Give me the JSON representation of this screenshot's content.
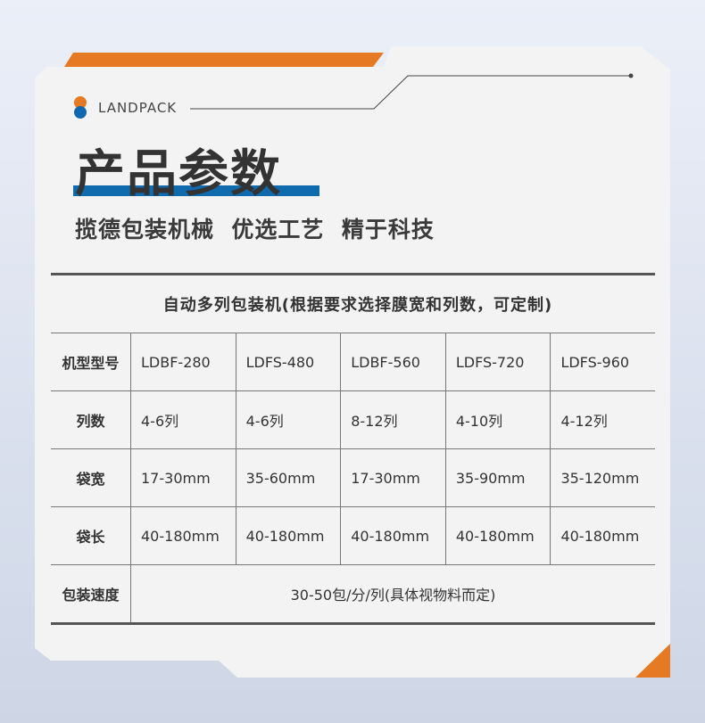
{
  "brand": "LANDPACK",
  "title": "产品参数",
  "subtitle": "揽德包装机械  优选工艺  精于科技",
  "colors": {
    "orange": "#e67a24",
    "blue": "#0f6aae",
    "card": "#f3f3f3"
  },
  "table": {
    "caption": "自动多列包装机(根据要求选择膜宽和列数，可定制)",
    "rows": [
      {
        "label": "机型型号",
        "values": [
          "LDBF-280",
          "LDFS-480",
          "LDBF-560",
          "LDFS-720",
          "LDFS-960"
        ]
      },
      {
        "label": "列数",
        "values": [
          "4-6列",
          "4-6列",
          "8-12列",
          "4-10列",
          "4-12列"
        ]
      },
      {
        "label": "袋宽",
        "values": [
          "17-30mm",
          "35-60mm",
          "17-30mm",
          "35-90mm",
          "35-120mm"
        ]
      },
      {
        "label": "袋长",
        "values": [
          "40-180mm",
          "40-180mm",
          "40-180mm",
          "40-180mm",
          "40-180mm"
        ]
      }
    ],
    "speed": {
      "label": "包装速度",
      "value": "30-50包/分/列(具体视物料而定)"
    }
  }
}
